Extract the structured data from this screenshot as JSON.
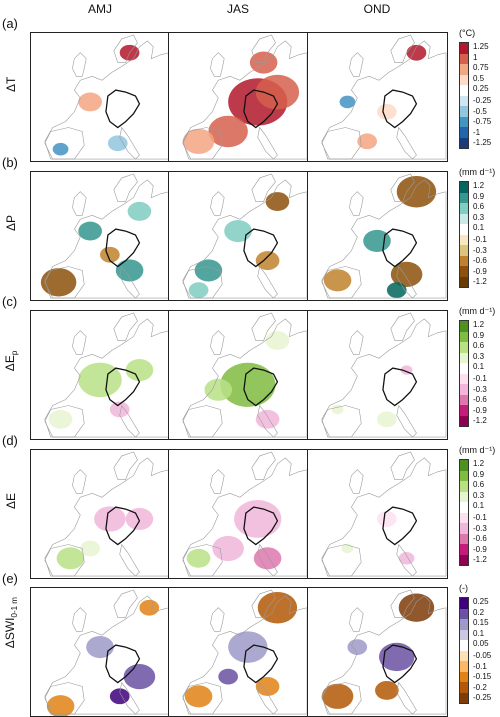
{
  "columns": [
    "AMJ",
    "JAS",
    "OND"
  ],
  "rows": [
    {
      "letter": "(a)",
      "var": "ΔT",
      "sub": "",
      "unit": "(°C)",
      "palette": "temp",
      "ticks": [
        "1.25",
        "1",
        "0.75",
        "0.5",
        "0.25",
        "-0.25",
        "-0.5",
        "-0.75",
        "-1",
        "-1.25"
      ],
      "colors": [
        "#b2182b",
        "#d6604d",
        "#f4a582",
        "#fddbc7",
        "#ffffff",
        "#d1e5f0",
        "#92c5de",
        "#4393c3",
        "#2166ac",
        "#1a3d7a"
      ]
    },
    {
      "letter": "(b)",
      "var": "ΔP",
      "sub": "",
      "unit": "(mm d⁻¹)",
      "palette": "precip",
      "ticks": [
        "1.2",
        "0.9",
        "0.6",
        "0.3",
        "0.1",
        "-0.1",
        "-0.3",
        "-0.6",
        "-0.9",
        "-1.2"
      ],
      "colors": [
        "#01665e",
        "#35978f",
        "#80cdc1",
        "#c7eae5",
        "#ffffff",
        "#f6e8c3",
        "#dfc27d",
        "#bf812d",
        "#8c510a",
        "#6a3a05"
      ]
    },
    {
      "letter": "(c)",
      "var": "ΔE",
      "sub": "p",
      "unit": "(mm d⁻¹)",
      "palette": "evap",
      "ticks": [
        "1.2",
        "0.9",
        "0.6",
        "0.3",
        "0.1",
        "-0.1",
        "-0.3",
        "-0.6",
        "-0.9",
        "-1.2"
      ],
      "colors": [
        "#4d9221",
        "#7fbc41",
        "#b8e186",
        "#e6f5d0",
        "#ffffff",
        "#fde0ef",
        "#f1b6da",
        "#de77ae",
        "#c51b7d",
        "#8e0152"
      ]
    },
    {
      "letter": "(d)",
      "var": "ΔE",
      "sub": "",
      "unit": "(mm d⁻¹)",
      "palette": "evap",
      "ticks": [
        "1.2",
        "0.9",
        "0.6",
        "0.3",
        "0.1",
        "-0.1",
        "-0.3",
        "-0.6",
        "-0.9",
        "-1.2"
      ],
      "colors": [
        "#4d9221",
        "#7fbc41",
        "#b8e186",
        "#e6f5d0",
        "#ffffff",
        "#fde0ef",
        "#f1b6da",
        "#de77ae",
        "#c51b7d",
        "#8e0152"
      ]
    },
    {
      "letter": "(e)",
      "var": "ΔSWI",
      "sub": "0-1 m",
      "unit": "(-)",
      "palette": "swi",
      "ticks": [
        "0.25",
        "0.2",
        "0.15",
        "0.1",
        "0.05",
        "-0.05",
        "-0.1",
        "-0.15",
        "-0.2",
        "-0.25"
      ],
      "colors": [
        "#3f007d",
        "#6a51a3",
        "#9e9ac8",
        "#cbc9e2",
        "#ffffff",
        "#fee0b6",
        "#fdb863",
        "#e08214",
        "#b35806",
        "#7f3b08"
      ]
    }
  ]
}
